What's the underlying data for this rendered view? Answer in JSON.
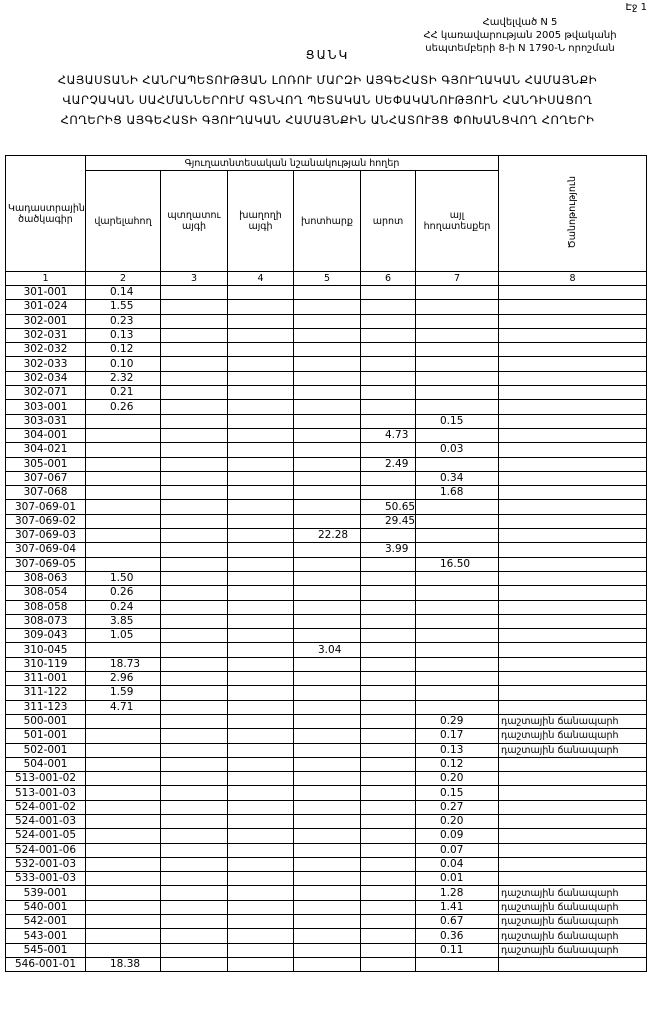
{
  "header": {
    "page": "Էջ 1",
    "annex": [
      "Հավելված N 5",
      "ՀՀ կառավարության 2005 թվականի",
      "սեպտեմբերի 8-ի N 1790-Ն որոշման"
    ],
    "title": "ՑԱՆԿ",
    "subtitle": [
      "ՀԱՅԱՍՏԱՆԻ ՀԱՆՐԱՊԵՏՈՒԹՅԱՆ ԼՈՌՈՒ ՄԱՐԶԻ ԱՅԳԵՀԱՏԻ ԳՅՈՒՂԱԿԱՆ ՀԱՄԱՅՆՔԻ",
      "ՎԱՐՉԱԿԱՆ ՍԱՀՄԱՆՆԵՐՈՒՄ ԳՏՆՎՈՂ ՊԵՏԱԿԱՆ ՍԵՓԱԿԱՆՈՒԹՅՈՒՆ ՀԱՆԴԻՍԱՑՈՂ",
      "ՀՈՂԵՐԻՑ ԱՅԳԵՀԱՏԻ ԳՅՈՒՂԱԿԱՆ ՀԱՄԱՅՆՔԻՆ ԱՆՀԱՏՈՒՅՑ ՓՈԽԱՆՑՎՈՂ ՀՈՂԵՐԻ"
    ]
  },
  "table": {
    "code_header": "Կադաստրային ծածկագիր",
    "group_header": "Գյուղատնտեսական նշանակության հողեր",
    "land_headers": [
      "վարելահող",
      "պտղատու այգի",
      "խաղողի այգի",
      "խոտհարք",
      "արոտ",
      "այլ հողատեսքեր"
    ],
    "note_header": "Ծանոթություն",
    "numbers": [
      "1",
      "2",
      "3",
      "4",
      "5",
      "6",
      "7",
      "8"
    ],
    "rows": [
      [
        "301-001",
        "0.14",
        null,
        null,
        null,
        null,
        null,
        null
      ],
      [
        "301-024",
        "1.55",
        null,
        null,
        null,
        null,
        null,
        null
      ],
      [
        "302-001",
        "0.23",
        null,
        null,
        null,
        null,
        null,
        null
      ],
      [
        "302-031",
        "0.13",
        null,
        null,
        null,
        null,
        null,
        null
      ],
      [
        "302-032",
        "0.12",
        null,
        null,
        null,
        null,
        null,
        null
      ],
      [
        "302-033",
        "0.10",
        null,
        null,
        null,
        null,
        null,
        null
      ],
      [
        "302-034",
        "2.32",
        null,
        null,
        null,
        null,
        null,
        null
      ],
      [
        "302-071",
        "0.21",
        null,
        null,
        null,
        null,
        null,
        null
      ],
      [
        "303-001",
        "0.26",
        null,
        null,
        null,
        null,
        null,
        null
      ],
      [
        "303-031",
        null,
        null,
        null,
        null,
        null,
        "0.15",
        null
      ],
      [
        "304-001",
        null,
        null,
        null,
        null,
        "4.73",
        null,
        null
      ],
      [
        "304-021",
        null,
        null,
        null,
        null,
        null,
        "0.03",
        null
      ],
      [
        "305-001",
        null,
        null,
        null,
        null,
        "2.49",
        null,
        null
      ],
      [
        "307-067",
        null,
        null,
        null,
        null,
        null,
        "0.34",
        null
      ],
      [
        "307-068",
        null,
        null,
        null,
        null,
        null,
        "1.68",
        null
      ],
      [
        "307-069-01",
        null,
        null,
        null,
        null,
        "50.65",
        null,
        null
      ],
      [
        "307-069-02",
        null,
        null,
        null,
        null,
        "29.45",
        null,
        null
      ],
      [
        "307-069-03",
        null,
        null,
        null,
        "22.28",
        null,
        null,
        null
      ],
      [
        "307-069-04",
        null,
        null,
        null,
        null,
        "3.99",
        null,
        null
      ],
      [
        "307-069-05",
        null,
        null,
        null,
        null,
        null,
        "16.50",
        null
      ],
      [
        "308-063",
        "1.50",
        null,
        null,
        null,
        null,
        null,
        null
      ],
      [
        "308-054",
        "0.26",
        null,
        null,
        null,
        null,
        null,
        null
      ],
      [
        "308-058",
        "0.24",
        null,
        null,
        null,
        null,
        null,
        null
      ],
      [
        "308-073",
        "3.85",
        null,
        null,
        null,
        null,
        null,
        null
      ],
      [
        "309-043",
        "1.05",
        null,
        null,
        null,
        null,
        null,
        null
      ],
      [
        "310-045",
        null,
        null,
        null,
        "3.04",
        null,
        null,
        null
      ],
      [
        "310-119",
        "18.73",
        null,
        null,
        null,
        null,
        null,
        null
      ],
      [
        "311-001",
        "2.96",
        null,
        null,
        null,
        null,
        null,
        null
      ],
      [
        "311-122",
        "1.59",
        null,
        null,
        null,
        null,
        null,
        null
      ],
      [
        "311-123",
        "4.71",
        null,
        null,
        null,
        null,
        null,
        null
      ],
      [
        "500-001",
        null,
        null,
        null,
        null,
        null,
        "0.29",
        "դաշտային ճանապարհ"
      ],
      [
        "501-001",
        null,
        null,
        null,
        null,
        null,
        "0.17",
        "դաշտային ճանապարհ"
      ],
      [
        "502-001",
        null,
        null,
        null,
        null,
        null,
        "0.13",
        "դաշտային ճանապարհ"
      ],
      [
        "504-001",
        null,
        null,
        null,
        null,
        null,
        "0.12",
        null
      ],
      [
        "513-001-02",
        null,
        null,
        null,
        null,
        null,
        "0.20",
        null
      ],
      [
        "513-001-03",
        null,
        null,
        null,
        null,
        null,
        "0.15",
        null
      ],
      [
        "524-001-02",
        null,
        null,
        null,
        null,
        null,
        "0.27",
        null
      ],
      [
        "524-001-03",
        null,
        null,
        null,
        null,
        null,
        "0.20",
        null
      ],
      [
        "524-001-05",
        null,
        null,
        null,
        null,
        null,
        "0.09",
        null
      ],
      [
        "524-001-06",
        null,
        null,
        null,
        null,
        null,
        "0.07",
        null
      ],
      [
        "532-001-03",
        null,
        null,
        null,
        null,
        null,
        "0.04",
        null
      ],
      [
        "533-001-03",
        null,
        null,
        null,
        null,
        null,
        "0.01",
        null
      ],
      [
        "539-001",
        null,
        null,
        null,
        null,
        null,
        "1.28",
        "դաշտային ճանապարհ"
      ],
      [
        "540-001",
        null,
        null,
        null,
        null,
        null,
        "1.41",
        "դաշտային ճանապարհ"
      ],
      [
        "542-001",
        null,
        null,
        null,
        null,
        null,
        "0.67",
        "դաշտային ճանապարհ"
      ],
      [
        "543-001",
        null,
        null,
        null,
        null,
        null,
        "0.36",
        "դաշտային ճանապարհ"
      ],
      [
        "545-001",
        null,
        null,
        null,
        null,
        null,
        "0.11",
        "դաշտային ճանապարհ"
      ],
      [
        "546-001-01",
        "18.38",
        null,
        null,
        null,
        null,
        null,
        null
      ]
    ]
  }
}
